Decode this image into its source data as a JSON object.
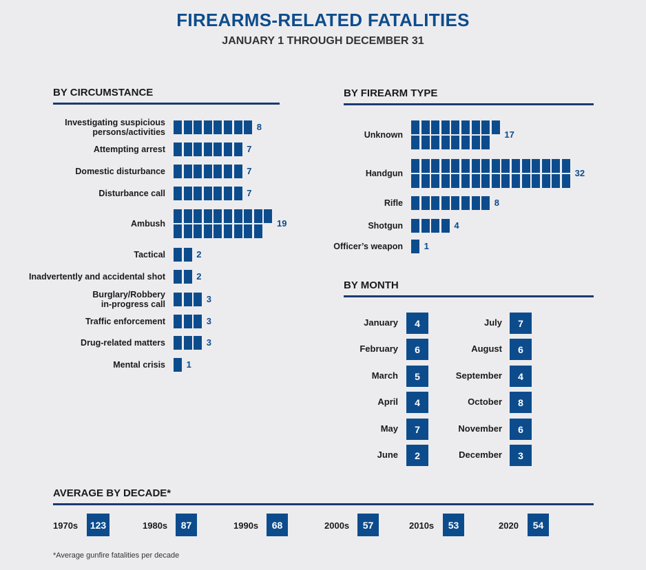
{
  "title": "FIREARMS-RELATED FATALITIES",
  "subtitle": "JANUARY 1 THROUGH DECEMBER 31",
  "colors": {
    "accent": "#0d4c8c",
    "rule": "#1a3a6e",
    "background": "#ececef"
  },
  "chart_data": [
    {
      "type": "bar",
      "title": "BY CIRCUMSTANCE",
      "categories": [
        "Investigating suspicious\npersons/activities",
        "Attempting arrest",
        "Domestic disturbance",
        "Disturbance call",
        "Ambush",
        "Tactical",
        "Inadvertently and accidental shot",
        "Burglary/Robbery\nin-progress call",
        "Traffic enforcement",
        "Drug-related matters",
        "Mental crisis"
      ],
      "values": [
        8,
        7,
        7,
        7,
        19,
        2,
        2,
        3,
        3,
        3,
        1
      ]
    },
    {
      "type": "bar",
      "title": "BY FIREARM TYPE",
      "categories": [
        "Unknown",
        "Handgun",
        "Rifle",
        "Shotgun",
        "Officer’s weapon"
      ],
      "values": [
        17,
        32,
        8,
        4,
        1
      ]
    },
    {
      "type": "table",
      "title": "BY MONTH",
      "categories": [
        "January",
        "February",
        "March",
        "April",
        "May",
        "June",
        "July",
        "August",
        "September",
        "October",
        "November",
        "December"
      ],
      "values": [
        4,
        6,
        5,
        4,
        7,
        2,
        7,
        6,
        4,
        8,
        6,
        3
      ]
    },
    {
      "type": "table",
      "title": "AVERAGE BY DECADE*",
      "categories": [
        "1970s",
        "1980s",
        "1990s",
        "2000s",
        "2010s",
        "2020"
      ],
      "values": [
        123,
        87,
        68,
        57,
        53,
        54
      ]
    }
  ],
  "footnote": "*Average gunfire fatalities per decade"
}
